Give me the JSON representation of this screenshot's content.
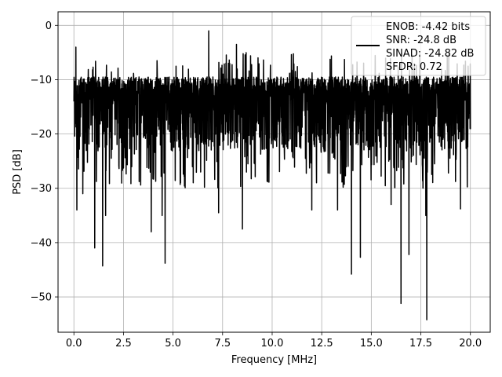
{
  "chart_data": {
    "type": "line",
    "title": "",
    "xlabel": "Frequency [MHz]",
    "ylabel": "PSD [dB]",
    "xlim": [
      -0.8,
      21.0
    ],
    "ylim": [
      -56.5,
      2.5
    ],
    "xticks": [
      0.0,
      2.5,
      5.0,
      7.5,
      10.0,
      12.5,
      15.0,
      17.5,
      20.0
    ],
    "xtick_labels": [
      "0.0",
      "2.5",
      "5.0",
      "7.5",
      "10.0",
      "12.5",
      "15.0",
      "17.5",
      "20.0"
    ],
    "yticks": [
      0,
      -10,
      -20,
      -30,
      -40,
      -50
    ],
    "ytick_labels": [
      "0",
      "−10",
      "−20",
      "−30",
      "−40",
      "−50"
    ],
    "grid": true,
    "legend_position": "top-right",
    "line_color": "#000000",
    "series": [
      {
        "name": "ENOB: -4.42 bits\nSNR: -24.8 dB\nSINAD: -24.82 dB\nSFDR: 0.72",
        "description_band_upper_db": -9.5,
        "description_band_lower_db": -23,
        "x_range": [
          0.0,
          20.0
        ],
        "peaks": [
          {
            "x": 0.0,
            "y": 0.0
          },
          {
            "x": 6.8,
            "y": -1.0
          },
          {
            "x": 8.2,
            "y": -3.5
          },
          {
            "x": 0.1,
            "y": -4.0
          }
        ],
        "dips": [
          {
            "x": 0.15,
            "y": -34.0
          },
          {
            "x": 0.45,
            "y": -31.0
          },
          {
            "x": 1.05,
            "y": -41.0
          },
          {
            "x": 1.45,
            "y": -44.3
          },
          {
            "x": 1.6,
            "y": -35.0
          },
          {
            "x": 3.9,
            "y": -38.0
          },
          {
            "x": 4.6,
            "y": -43.8
          },
          {
            "x": 4.45,
            "y": -35.0
          },
          {
            "x": 7.3,
            "y": -34.5
          },
          {
            "x": 8.5,
            "y": -37.5
          },
          {
            "x": 12.0,
            "y": -34.0
          },
          {
            "x": 13.3,
            "y": -34.0
          },
          {
            "x": 14.0,
            "y": -45.8
          },
          {
            "x": 14.45,
            "y": -42.7
          },
          {
            "x": 16.0,
            "y": -33.0
          },
          {
            "x": 16.5,
            "y": -51.2
          },
          {
            "x": 16.9,
            "y": -42.2
          },
          {
            "x": 17.8,
            "y": -54.2
          },
          {
            "x": 17.75,
            "y": -35.0
          },
          {
            "x": 19.5,
            "y": -33.8
          }
        ]
      }
    ]
  }
}
